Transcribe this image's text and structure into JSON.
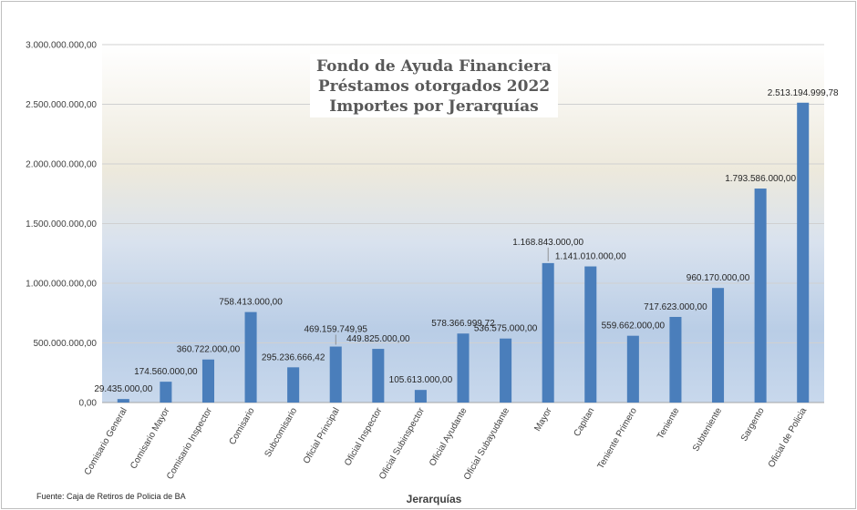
{
  "chart_data": {
    "type": "bar",
    "title": [
      "Fondo de Ayuda Financiera",
      "Préstamos otorgados 2022",
      "Importes por Jerarquías"
    ],
    "xlabel": "Jerarquías",
    "ylabel": "",
    "ylim": [
      0,
      3000000000
    ],
    "yticks": [
      0,
      500000000,
      1000000000,
      1500000000,
      2000000000,
      2500000000,
      3000000000
    ],
    "ytick_labels": [
      "0,00",
      "500.000.000,00",
      "1.000.000.000,00",
      "1.500.000.000,00",
      "2.000.000.000,00",
      "2.500.000.000,00",
      "3.000.000.000,00"
    ],
    "grid": true,
    "legend": "none",
    "bar_color": "#4a7ebb",
    "categories": [
      "Comisario General",
      "Comisario Mayor",
      "Comisario Inspector",
      "Comisario",
      "Subcomisario",
      "Oficial Principal",
      "Oficial Inspector",
      "Oficial Subinspector",
      "Oficial Ayudante",
      "Oficial Subayudante",
      "Mayor",
      "Capitan",
      "Teniente Primero",
      "Teniente",
      "Subteniente",
      "Sargento",
      "Oficial de Policia"
    ],
    "values": [
      29435000,
      174560000,
      360722000,
      758413000,
      295236666.42,
      469159749.95,
      449825000,
      105613000,
      578366999.72,
      536575000,
      1168843000,
      1141010000,
      559662000,
      717623000,
      960170000,
      1793586000,
      2513194999.78
    ],
    "value_labels": [
      "29.435.000,00",
      "174.560.000,00",
      "360.722.000,00",
      "758.413.000,00",
      "295.236.666,42",
      "469.159.749,95",
      "449.825.000,00",
      "105.613.000,00",
      "578.366.999,72",
      "536.575.000,00",
      "1.168.843.000,00",
      "1.141.010.000,00",
      "559.662.000,00",
      "717.623.000,00",
      "960.170.000,00",
      "1.793.586.000,00",
      "2.513.194.999,78"
    ]
  },
  "footer": {
    "source": "Fuente: Caja de Retiros de Policia de BA"
  }
}
